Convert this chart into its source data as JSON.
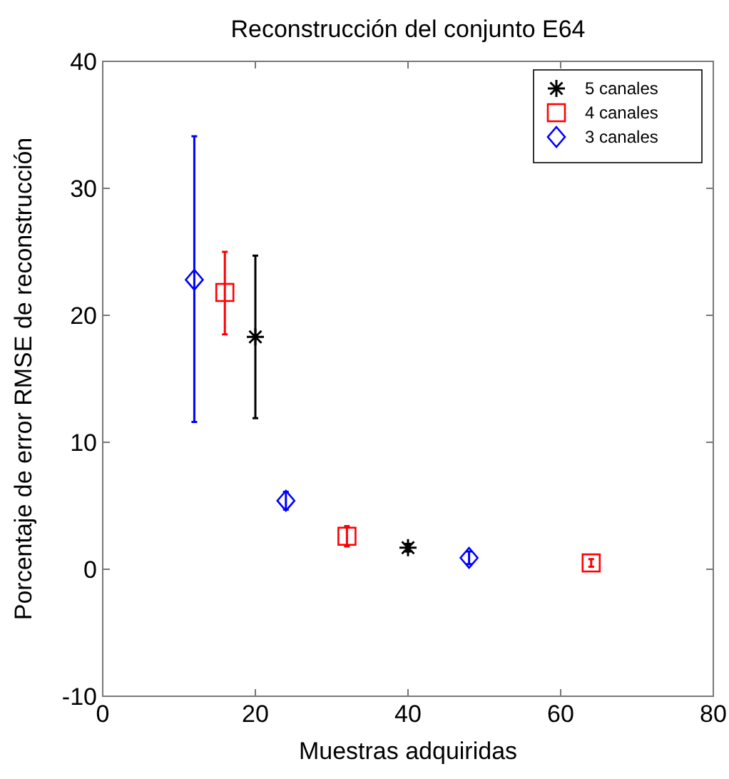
{
  "chart_data": {
    "type": "scatter",
    "title": "Reconstrucción del conjunto E64",
    "xlabel": "Muestras adquiridas",
    "ylabel": "Porcentaje de error RMSE de reconstrucción",
    "xlim": [
      0,
      80
    ],
    "xticks": [
      0,
      20,
      40,
      60,
      80
    ],
    "ylim": [
      -10,
      40
    ],
    "yticks": [
      -10,
      0,
      10,
      20,
      30,
      40
    ],
    "grid": false,
    "legend": "top right",
    "series": [
      {
        "name": "5 canales",
        "color": "#000000",
        "marker": "cross",
        "x": [
          20,
          40
        ],
        "values": [
          18.3,
          1.7
        ],
        "errors": [
          [
            11.9,
            24.7
          ],
          [
            1.4,
            2.0
          ]
        ]
      },
      {
        "name": "4 canales",
        "color": "#ff0000",
        "marker": "square",
        "x": [
          16,
          32,
          64
        ],
        "values": [
          21.8,
          2.6,
          0.5
        ],
        "errors": [
          [
            18.5,
            25.0
          ],
          [
            1.8,
            3.4
          ],
          [
            0.2,
            0.8
          ]
        ]
      },
      {
        "name": "3 canales",
        "color": "#0000ff",
        "marker": "diamond",
        "x": [
          12,
          24,
          48
        ],
        "values": [
          22.8,
          5.4,
          0.9
        ],
        "errors": [
          [
            11.6,
            34.1
          ],
          [
            4.7,
            6.1
          ],
          [
            0.4,
            1.4
          ]
        ]
      }
    ]
  }
}
